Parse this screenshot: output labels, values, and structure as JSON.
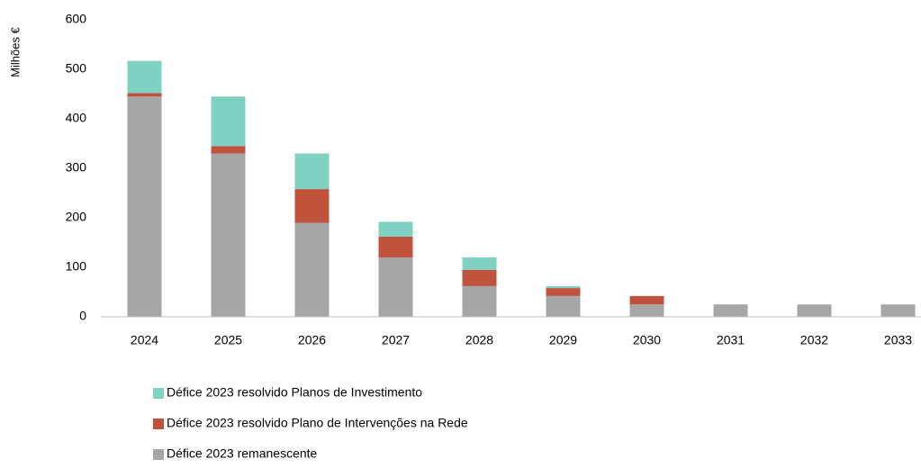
{
  "chart_data": {
    "type": "stacked_bar",
    "y_label": "Milhões €",
    "categories": [
      "2024",
      "2025",
      "2026",
      "2027",
      "2028",
      "2029",
      "2030",
      "2031",
      "2032",
      "2033"
    ],
    "series": [
      {
        "name": "Défice 2023 remanescente",
        "color": "#a6a6a6",
        "values": [
          445,
          330,
          190,
          120,
          62,
          42,
          25,
          25,
          25,
          25
        ]
      },
      {
        "name": "Défice 2023 resolvido Plano de Intervenções na Rede",
        "color": "#c0533c",
        "values": [
          7,
          15,
          68,
          42,
          33,
          16,
          17,
          0,
          0,
          0
        ]
      },
      {
        "name": "Défice 2023 resolvido Planos de Investimento",
        "color": "#7fd1c1",
        "values": [
          65,
          100,
          72,
          30,
          25,
          4,
          0,
          0,
          0,
          0
        ]
      }
    ],
    "ylim": [
      0,
      600
    ],
    "yticks": [
      0,
      100,
      200,
      300,
      400,
      500,
      600
    ],
    "grid": false
  }
}
